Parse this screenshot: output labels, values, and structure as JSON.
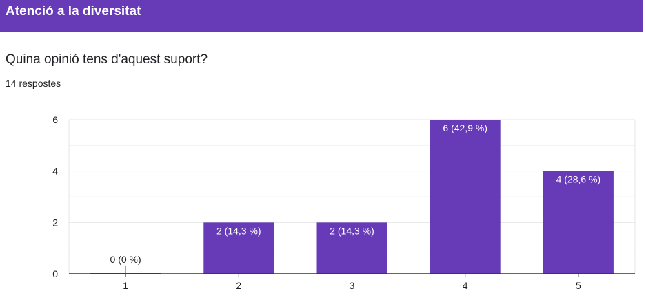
{
  "section": {
    "title": "Atenció a la diversitat"
  },
  "question": {
    "title": "Quina opinió tens d'aquest suport?",
    "responses": "14 respostes"
  },
  "colors": {
    "accent": "#673ab7",
    "bar": "#673ab7",
    "grid": "#e0e0e0",
    "axis": "#333333",
    "text": "#202124"
  },
  "chart_data": {
    "type": "bar",
    "categories": [
      "1",
      "2",
      "3",
      "4",
      "5"
    ],
    "values": [
      0,
      2,
      2,
      6,
      4
    ],
    "data_labels": [
      "0 (0 %)",
      "2 (14,3 %)",
      "2 (14,3 %)",
      "6 (42,9 %)",
      "4 (28,6 %)"
    ],
    "yticks": [
      "0",
      "2",
      "4",
      "6"
    ],
    "ylim": [
      0,
      6
    ],
    "grid": true
  }
}
